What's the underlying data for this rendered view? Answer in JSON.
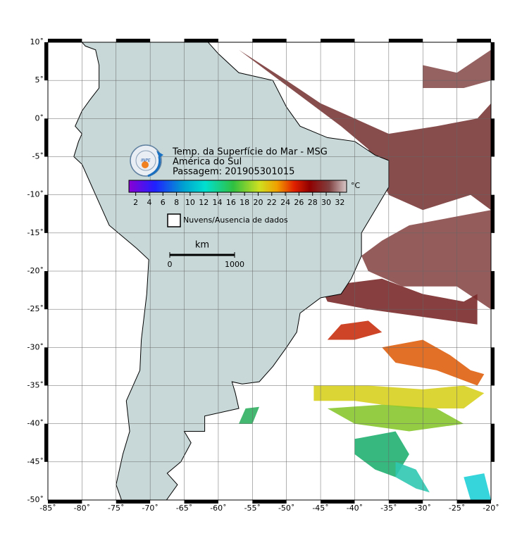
{
  "map": {
    "title_lines": [
      "Temp. da Superfície do Mar - MSG",
      "América do Sul",
      "Passagem: 201905301015"
    ],
    "logo_text": "INPE",
    "lonlim": [
      -85,
      -20
    ],
    "latlim": [
      -50,
      10
    ],
    "lon_ticks": [
      {
        "value": -85,
        "label": "-85˚"
      },
      {
        "value": -80,
        "label": "-80˚"
      },
      {
        "value": -75,
        "label": "-75˚"
      },
      {
        "value": -70,
        "label": "-70˚"
      },
      {
        "value": -65,
        "label": "-65˚"
      },
      {
        "value": -60,
        "label": "-60˚"
      },
      {
        "value": -55,
        "label": "-55˚"
      },
      {
        "value": -50,
        "label": "-50˚"
      },
      {
        "value": -45,
        "label": "-45˚"
      },
      {
        "value": -40,
        "label": "-40˚"
      },
      {
        "value": -35,
        "label": "-35˚"
      },
      {
        "value": -30,
        "label": "-30˚"
      },
      {
        "value": -25,
        "label": "-25˚"
      },
      {
        "value": -20,
        "label": "-20˚"
      }
    ],
    "lat_ticks": [
      {
        "value": 10,
        "label": "10˚"
      },
      {
        "value": 5,
        "label": "5˚"
      },
      {
        "value": 0,
        "label": "0˚"
      },
      {
        "value": -5,
        "label": "-5˚"
      },
      {
        "value": -10,
        "label": "-10˚"
      },
      {
        "value": -15,
        "label": "-15˚"
      },
      {
        "value": -20,
        "label": "-20˚"
      },
      {
        "value": -25,
        "label": "-25˚"
      },
      {
        "value": -30,
        "label": "-30˚"
      },
      {
        "value": -35,
        "label": "-35˚"
      },
      {
        "value": -40,
        "label": "-40˚"
      },
      {
        "value": -45,
        "label": "-45˚"
      },
      {
        "value": -50,
        "label": "-50˚"
      }
    ],
    "colorbar": {
      "range": [
        1,
        33
      ],
      "ticks": [
        2,
        4,
        6,
        8,
        10,
        12,
        14,
        16,
        18,
        20,
        22,
        24,
        26,
        28,
        30,
        32
      ],
      "unit": "°C"
    },
    "legend": "Nuvens/Ausencia de dados",
    "scale_bar": {
      "unit": "km",
      "start": "0",
      "end": "1000"
    }
  }
}
